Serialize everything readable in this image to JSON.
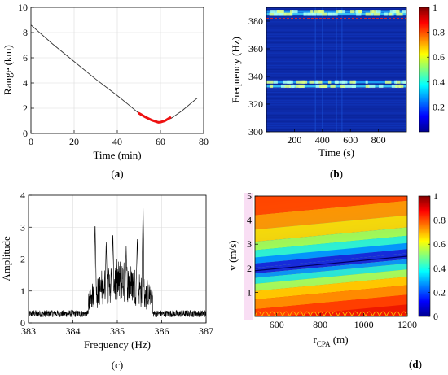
{
  "chart_data": [
    {
      "id": "a",
      "type": "line",
      "panel_label": "(a)",
      "xlabel": "Time (min)",
      "ylabel": "Range (km)",
      "xlim": [
        0,
        80
      ],
      "ylim": [
        0,
        10
      ],
      "xticks": [
        0,
        20,
        40,
        60,
        80
      ],
      "yticks": [
        0,
        2,
        4,
        6,
        8,
        10
      ],
      "grid": true,
      "series": [
        {
          "color": "#333333",
          "x": [
            0,
            10,
            20,
            30,
            40,
            45,
            50,
            55,
            60,
            65,
            70,
            77
          ],
          "y": [
            8.6,
            7.1,
            5.7,
            4.3,
            3.0,
            2.3,
            1.6,
            1.15,
            0.9,
            1.2,
            1.8,
            2.8
          ]
        },
        {
          "color": "#ee1111",
          "x": [
            50,
            53,
            56,
            59,
            60,
            62,
            64.5
          ],
          "y": [
            1.6,
            1.3,
            1.05,
            0.88,
            0.9,
            1.0,
            1.25
          ]
        }
      ]
    },
    {
      "id": "b",
      "type": "heatmap",
      "panel_label": "(b)",
      "xlabel": "Time (s)",
      "ylabel": "Frequency (Hz)",
      "xlim": [
        0,
        1000
      ],
      "ylim": [
        300,
        390
      ],
      "xticks": [
        200,
        400,
        600,
        800
      ],
      "yticks": [
        300,
        320,
        340,
        360,
        380
      ],
      "colorbar_ticks": [
        0.2,
        0.4,
        0.6,
        0.8,
        1
      ],
      "bands_hz": [
        385,
        387,
        333,
        336
      ],
      "dashed_lines_hz": [
        382,
        331
      ],
      "dashed_color": "#ee2222"
    },
    {
      "id": "c",
      "type": "line",
      "panel_label": "(c)",
      "xlabel": "Frequency (Hz)",
      "ylabel": "Amplitude",
      "xlim": [
        383,
        387
      ],
      "ylim": [
        0,
        4
      ],
      "xticks": [
        383,
        384,
        385,
        386,
        387
      ],
      "yticks": [
        0,
        1,
        2,
        3,
        4
      ],
      "grid": true,
      "peaks": [
        {
          "x": 384.5,
          "y": 3.2
        },
        {
          "x": 384.75,
          "y": 2.6
        },
        {
          "x": 384.9,
          "y": 2.9
        },
        {
          "x": 385.2,
          "y": 2.4
        },
        {
          "x": 385.45,
          "y": 2.7
        },
        {
          "x": 385.58,
          "y": 3.8
        }
      ]
    },
    {
      "id": "d",
      "type": "heatmap",
      "panel_label": "(d)",
      "xlabel": "r_CPA (m)",
      "xlabel_main": "r",
      "xlabel_sub": "CPA",
      "xlabel_unit": " (m)",
      "ylabel": "v (m/s)",
      "xlim": [
        500,
        1200
      ],
      "ylim": [
        0,
        5
      ],
      "xticks": [
        600,
        800,
        1000,
        1200
      ],
      "yticks": [
        1,
        2,
        3,
        4,
        5
      ],
      "colorbar_ticks": [
        0,
        0.2,
        0.4,
        0.6,
        0.8,
        1
      ],
      "valley": {
        "x": [
          500,
          1200
        ],
        "y": [
          1.9,
          2.5
        ]
      }
    }
  ]
}
